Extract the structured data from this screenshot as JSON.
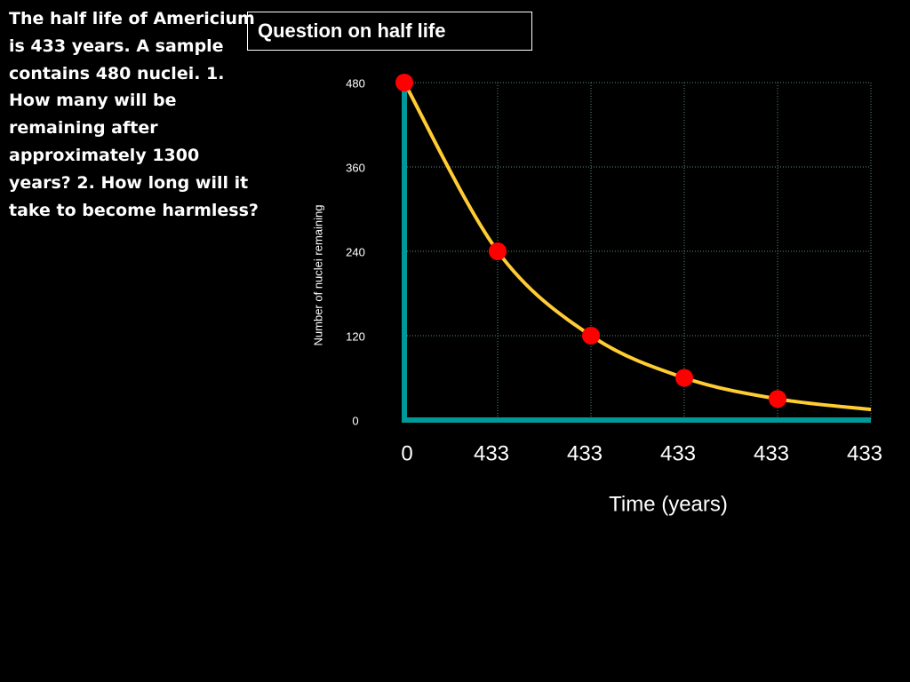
{
  "text": "The half life of Americium is 433 years. A sample contains 480 nuclei. 1.  How many will be remaining after approximately 1300 years? 2.  How long will it take to become harmless?",
  "chart_data": {
    "type": "line",
    "title": "Question on half life",
    "x_label": "Time (years)",
    "y_label": "Number of nuclei remaining",
    "categories": [
      "0",
      "433",
      "433",
      "433",
      "433",
      "433"
    ],
    "series": [
      {
        "color": "#ffcc33",
        "values": [
          480,
          240,
          120,
          60,
          30,
          15
        ]
      },
      {
        "type": "scatter",
        "color": "#ff0000",
        "values": [
          480,
          240,
          120,
          60,
          30,
          null
        ]
      }
    ],
    "ylim": [
      0,
      480
    ],
    "yticks": [
      0,
      120,
      240,
      360,
      480
    ],
    "grid": true,
    "axis_color": "#009999"
  }
}
